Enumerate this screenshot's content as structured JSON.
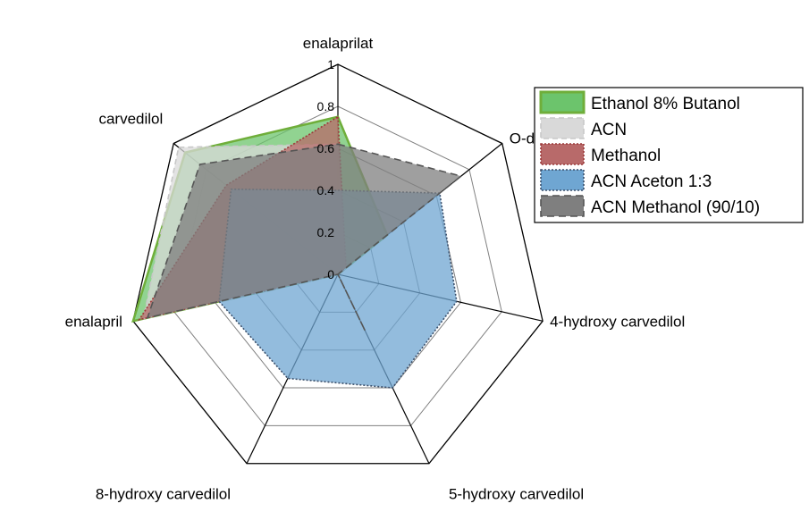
{
  "chart_data": {
    "type": "radar",
    "axes": [
      "enalaprilat",
      "O-desmethyl carvedilol",
      "4-hydroxy carvedilol",
      "5-hydroxy carvedilol",
      "8-hydroxy carvedilol",
      "enalapril",
      "carvedilol"
    ],
    "rlim": [
      0,
      1
    ],
    "ticks": [
      "0",
      "0.2",
      "0.4",
      "0.6",
      "0.8",
      "1"
    ],
    "series": [
      {
        "name": "Ethanol 8% Butanol",
        "values": [
          0.75,
          0.3,
          0.0,
          0.0,
          0.0,
          1.0,
          0.93
        ],
        "fill": "#6cc46c",
        "stroke": "#6fae3a",
        "dash": ""
      },
      {
        "name": "ACN",
        "values": [
          0.62,
          0.05,
          0.0,
          0.0,
          0.0,
          0.95,
          0.97
        ],
        "fill": "#d9d9d9",
        "stroke": "#c8c8c8",
        "dash": "6,4"
      },
      {
        "name": "Methanol",
        "values": [
          0.75,
          0.05,
          0.0,
          0.0,
          0.0,
          0.97,
          0.68
        ],
        "fill": "#b86a6a",
        "stroke": "#9c3a3a",
        "dash": "2,2"
      },
      {
        "name": "ACN Aceton 1:3",
        "values": [
          0.4,
          0.62,
          0.58,
          0.6,
          0.55,
          0.58,
          0.65
        ],
        "fill": "#6fa6d2",
        "stroke": "#3a4f6b",
        "dash": "2,2"
      },
      {
        "name": "ACN Methanol (90/10)",
        "values": [
          0.62,
          0.75,
          0.0,
          0.3,
          0.0,
          0.93,
          0.84
        ],
        "fill": "#7f7f7f",
        "stroke": "#555555",
        "dash": "8,5"
      }
    ],
    "legend": {
      "position": "right"
    }
  }
}
